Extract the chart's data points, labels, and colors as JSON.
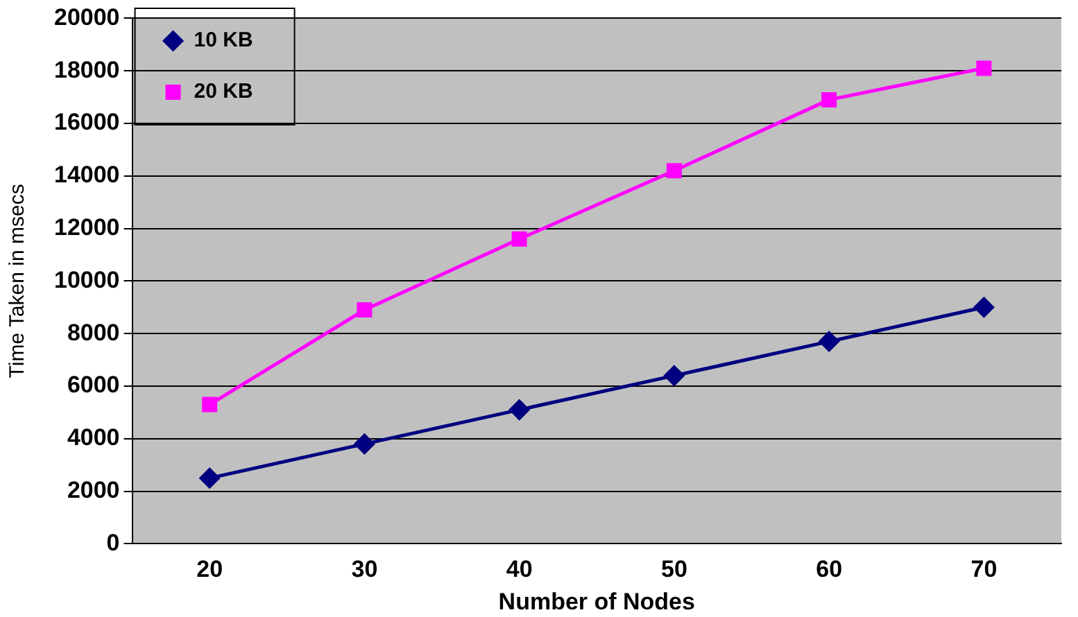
{
  "chart_data": {
    "type": "line",
    "xlabel": "Number of Nodes",
    "ylabel": "Time Taken in msecs",
    "categories": [
      "20",
      "30",
      "40",
      "50",
      "60",
      "70"
    ],
    "series": [
      {
        "name": "10 KB",
        "color": "#000080",
        "marker": "diamond",
        "values": [
          2500,
          3800,
          5100,
          6400,
          7700,
          9000
        ]
      },
      {
        "name": "20 KB",
        "color": "#ff00ff",
        "marker": "square",
        "values": [
          5300,
          8900,
          11600,
          14200,
          16900,
          18100
        ]
      }
    ],
    "ylim": [
      0,
      20000
    ],
    "yticks": [
      0,
      2000,
      4000,
      6000,
      8000,
      10000,
      12000,
      14000,
      16000,
      18000,
      20000
    ],
    "grid": "y",
    "legend": "top left",
    "line_style": "solid"
  }
}
